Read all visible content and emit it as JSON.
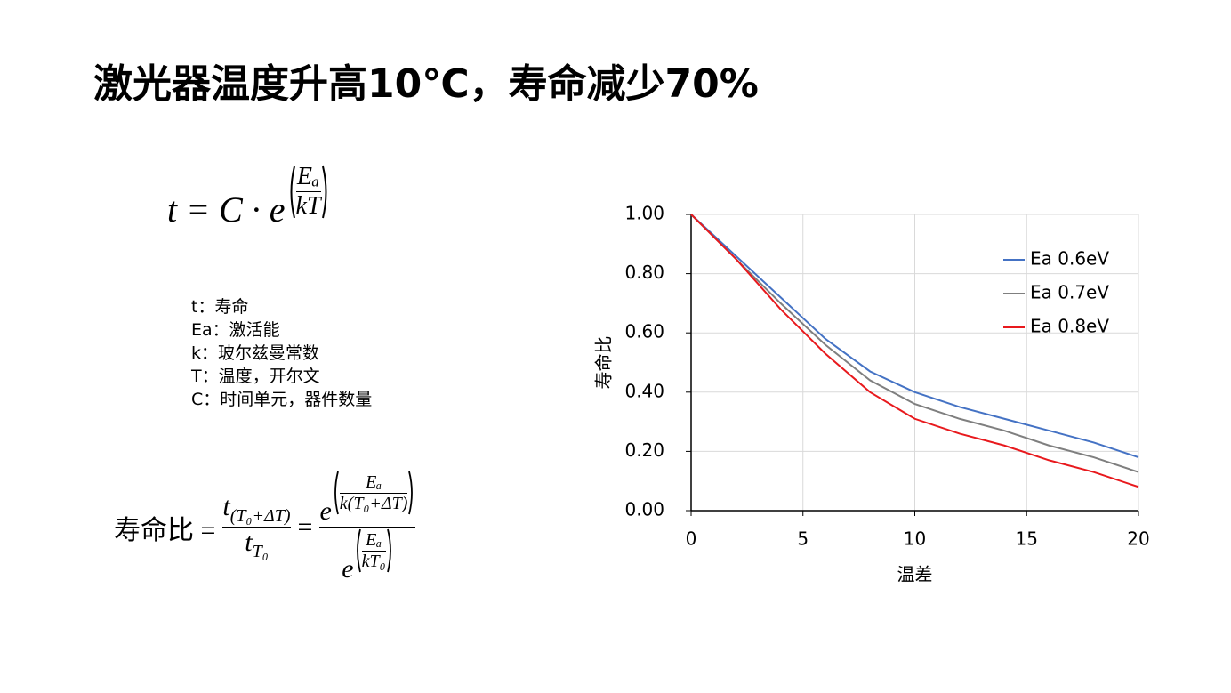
{
  "header": {
    "title": "激光器温度升高10℃，寿命减少70%"
  },
  "formula_1": {
    "lhs": "t = C · e",
    "exp_num": "Eₐ",
    "exp_den": "kT"
  },
  "definitions": [
    "t：寿命",
    "Ea：激活能",
    "k：玻尔兹曼常数",
    "T：温度，开尔文",
    "C：时间单元，器件数量"
  ],
  "formula_2": {
    "lhs": "寿命比 =",
    "num_base": "t",
    "num_sub": "(T₀+ΔT)",
    "den_base": "t",
    "den_sub": "T₀",
    "eq": "=",
    "num2_base": "e",
    "num2_exp_num": "Eₐ",
    "num2_exp_den": "k(T₀+ΔT)",
    "den2_base": "e",
    "den2_exp_num": "Eₐ",
    "den2_exp_den": "kT₀"
  },
  "chart_data": {
    "type": "line",
    "x_label": "温差",
    "y_label": "寿命比",
    "x": [
      0,
      2,
      4,
      6,
      8,
      10,
      12,
      14,
      16,
      18,
      20
    ],
    "series": [
      {
        "name": "Ea 0.6eV",
        "color": "#4472c4",
        "values": [
          1.0,
          0.86,
          0.72,
          0.58,
          0.47,
          0.4,
          0.35,
          0.31,
          0.27,
          0.23,
          0.18
        ]
      },
      {
        "name": "Ea 0.7eV",
        "color": "#7f7f7f",
        "values": [
          1.0,
          0.85,
          0.7,
          0.56,
          0.44,
          0.36,
          0.31,
          0.27,
          0.22,
          0.18,
          0.13
        ]
      },
      {
        "name": "Ea 0.8eV",
        "color": "#e8191d",
        "values": [
          1.0,
          0.85,
          0.68,
          0.53,
          0.4,
          0.31,
          0.26,
          0.22,
          0.17,
          0.13,
          0.08
        ]
      }
    ],
    "xlim": [
      0,
      20
    ],
    "xticks": [
      0,
      5,
      10,
      15,
      20
    ],
    "ylim": [
      0,
      1
    ],
    "yticks": [
      {
        "value": 0,
        "label": "0.00"
      },
      {
        "value": 0.2,
        "label": "0.20"
      },
      {
        "value": 0.4,
        "label": "0.40"
      },
      {
        "value": 0.6,
        "label": "0.60"
      },
      {
        "value": 0.8,
        "label": "0.80"
      },
      {
        "value": 1,
        "label": "1.00"
      }
    ],
    "grid": true,
    "legend": "upper right"
  }
}
